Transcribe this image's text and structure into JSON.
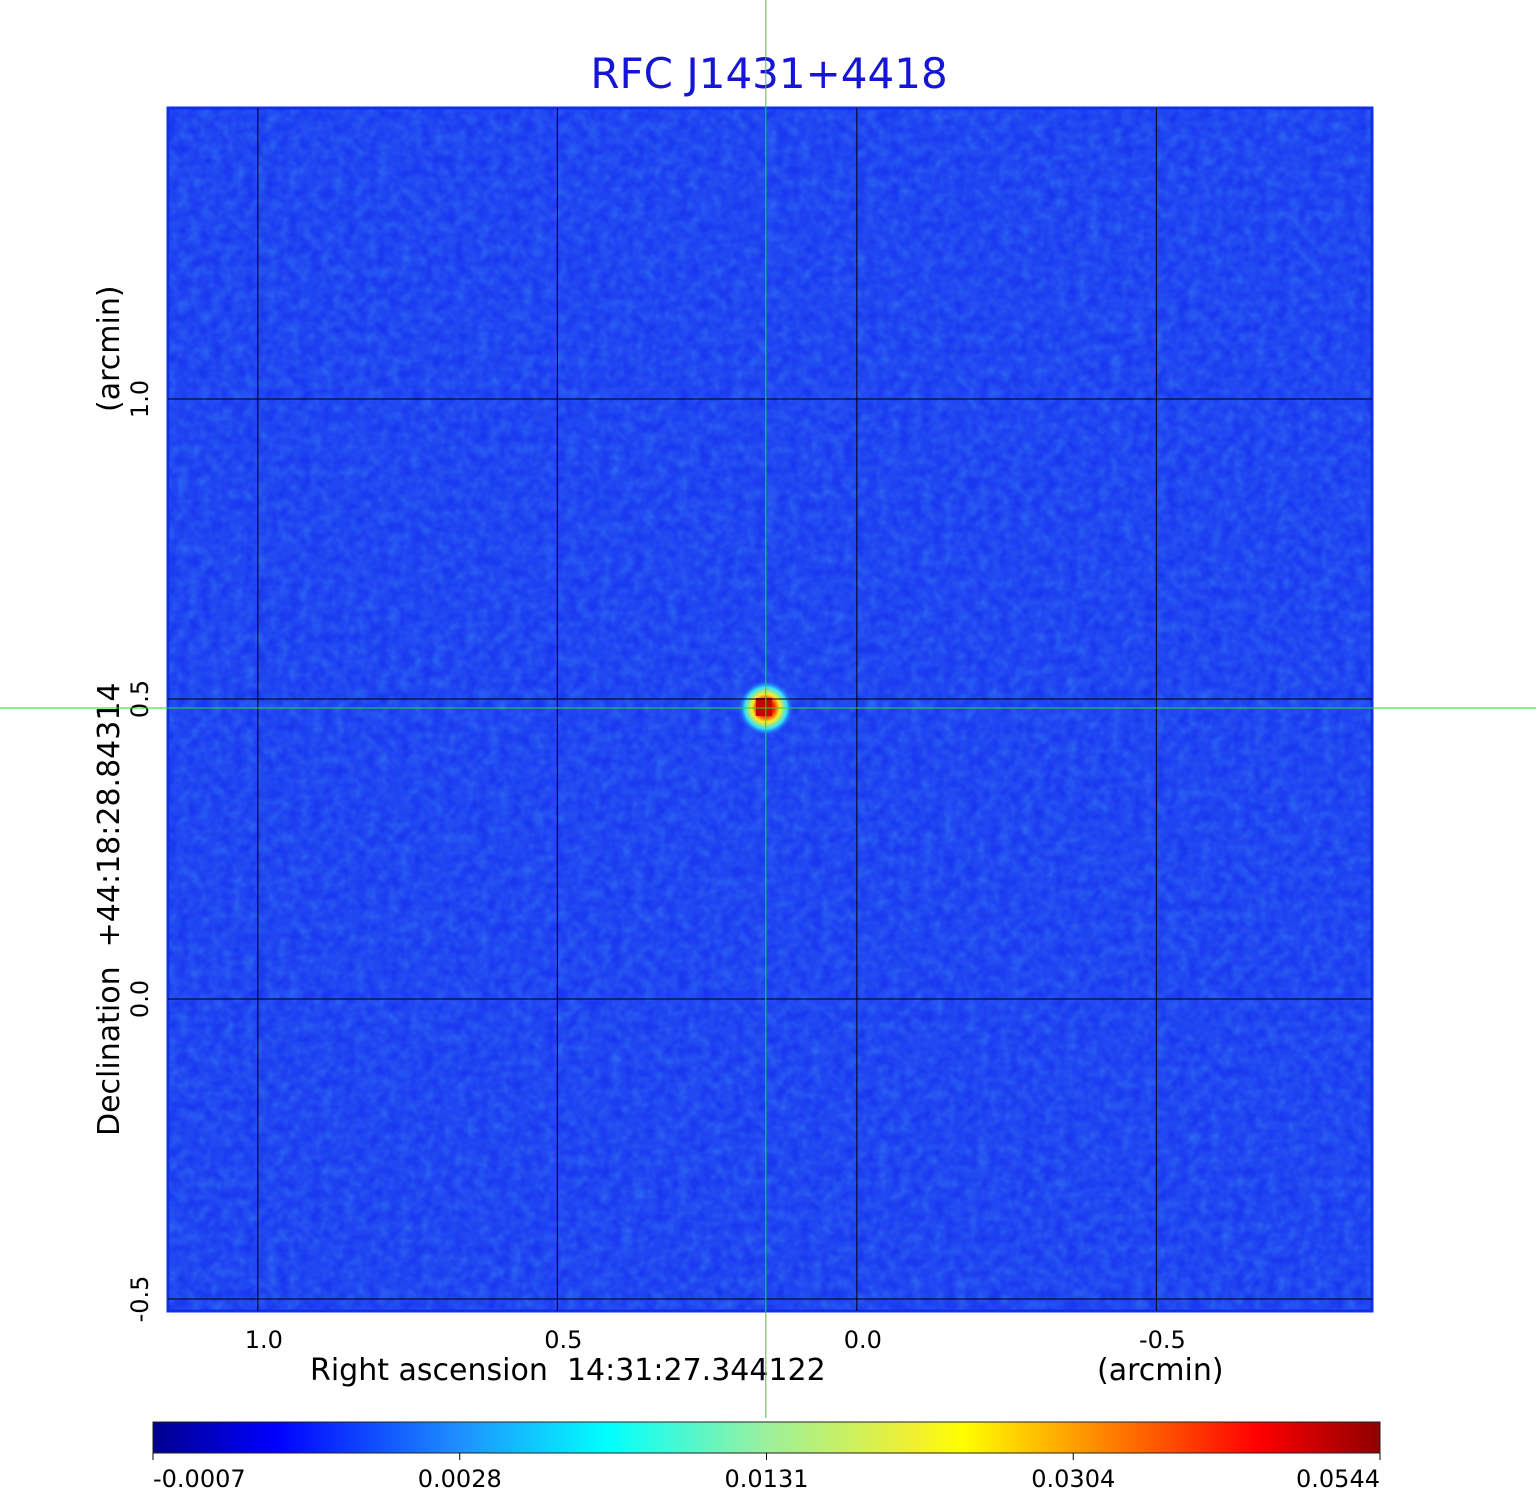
{
  "chart_data": {
    "type": "image",
    "title": "RFC J1431+4418",
    "x_label": "Right ascension  14:31:27.344122",
    "x_unit": "(arcmin)",
    "y_label": "Declination  +44:18:28.84314",
    "y_unit": "(arcmin)",
    "xlim": [
      1.15,
      -0.86
    ],
    "ylim": [
      -0.52,
      1.485
    ],
    "xticks": [
      {
        "value": 1.0,
        "label": "1.0"
      },
      0.5,
      {
        "value": 0.0,
        "label": "0.0"
      },
      -0.5
    ],
    "yticks": [
      -0.5,
      {
        "value": 0.0,
        "label": "0.0"
      },
      0.5,
      {
        "value": 1.0,
        "label": "1.0"
      }
    ],
    "grid": true,
    "crosshair": {
      "x": 0.152,
      "y": 0.485,
      "color": "#22dd22"
    },
    "colorbar_ticks": [
      -0.0007,
      0.0028,
      0.0131,
      0.0304,
      0.0544
    ]
  }
}
